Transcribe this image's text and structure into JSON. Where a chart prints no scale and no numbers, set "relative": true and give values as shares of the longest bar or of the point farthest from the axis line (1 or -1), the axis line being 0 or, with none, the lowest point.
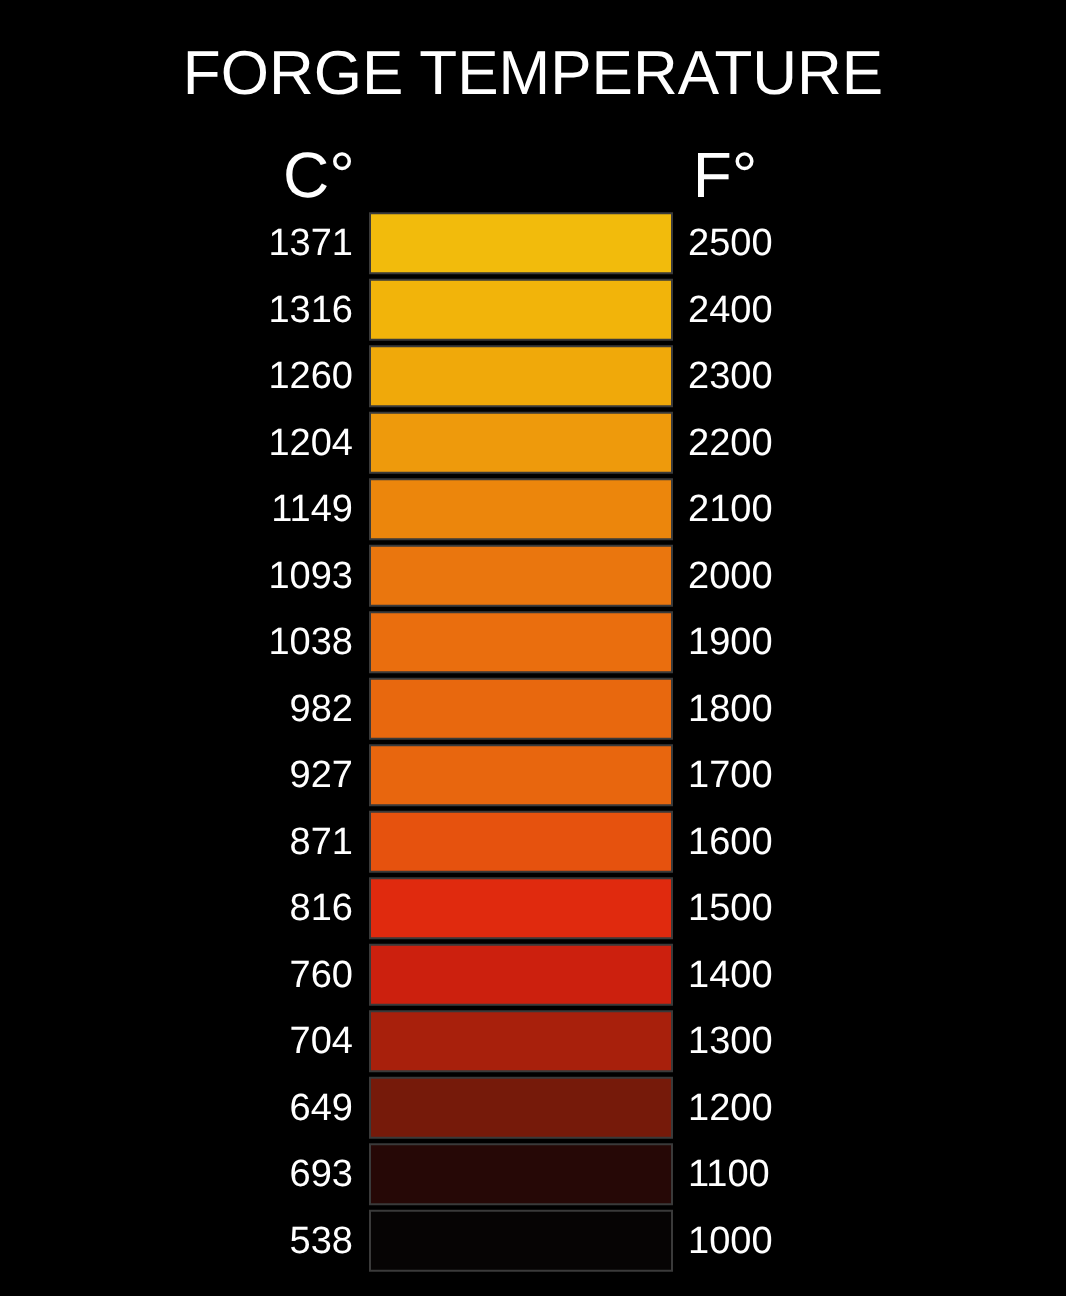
{
  "chart_data": {
    "type": "bar",
    "orientation": "horizontal",
    "relative": true,
    "title": "FORGE TEMPERATURE",
    "ylabel": "C°",
    "y2label": "F°",
    "categories": [
      "1371",
      "1316",
      "1260",
      "1204",
      "1149",
      "1093",
      "1038",
      "982",
      "927",
      "871",
      "816",
      "760",
      "704",
      "649",
      "693",
      "538"
    ],
    "y2_categories": [
      "2500",
      "2400",
      "2300",
      "2200",
      "2100",
      "2000",
      "1900",
      "1800",
      "1700",
      "1600",
      "1500",
      "1400",
      "1300",
      "1200",
      "1100",
      "1000"
    ],
    "values": [
      1,
      1,
      1,
      1,
      1,
      1,
      1,
      1,
      1,
      1,
      1,
      1,
      1,
      1,
      1,
      1
    ],
    "colors": [
      "#f2bb0c",
      "#f2b40a",
      "#f0a90a",
      "#ee9a0c",
      "#ec860c",
      "#ea760e",
      "#ea6e0e",
      "#e8680e",
      "#e8660e",
      "#e6520e",
      "#e02a0e",
      "#cc200e",
      "#a8200c",
      "#761a0a",
      "#260806",
      "#060404"
    ]
  }
}
